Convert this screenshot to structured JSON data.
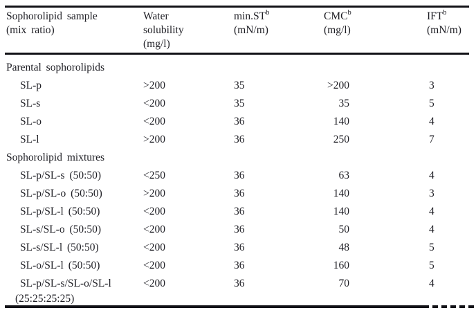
{
  "page": {
    "background": "#ffffff",
    "text_color": "#1e1e24",
    "rule_color": "#121217"
  },
  "table": {
    "header": {
      "sample": {
        "line1": "Sophorolipid sample",
        "line2": "(mix ratio)"
      },
      "water": {
        "line1": "Water",
        "line2": "solubility",
        "line3": "(mg/l)"
      },
      "min_st": {
        "name": "min.ST",
        "sup": "b",
        "unit": "(mN/m)"
      },
      "cmc": {
        "name": "CMC",
        "sup": "b",
        "unit": "(mg/l)"
      },
      "ift": {
        "name": "IFT",
        "sup": "b",
        "unit": "(mN/m)"
      }
    },
    "sections": [
      {
        "title": "Parental sophorolipids",
        "rows": [
          {
            "sample": "SL-p",
            "water_solubility": ">200",
            "min_st": "35",
            "cmc": ">200",
            "ift": "3"
          },
          {
            "sample": "SL-s",
            "water_solubility": "<200",
            "min_st": "35",
            "cmc": "35",
            "ift": "5"
          },
          {
            "sample": "SL-o",
            "water_solubility": "<200",
            "min_st": "36",
            "cmc": "140",
            "ift": "4"
          },
          {
            "sample": "SL-l",
            "water_solubility": ">200",
            "min_st": "36",
            "cmc": "250",
            "ift": "7"
          }
        ]
      },
      {
        "title": "Sophorolipid mixtures",
        "rows": [
          {
            "sample": "SL-p/SL-s (50:50)",
            "water_solubility": "<250",
            "min_st": "36",
            "cmc": "63",
            "ift": "4"
          },
          {
            "sample": "SL-p/SL-o (50:50)",
            "water_solubility": ">200",
            "min_st": "36",
            "cmc": "140",
            "ift": "3"
          },
          {
            "sample": "SL-p/SL-l (50:50)",
            "water_solubility": "<200",
            "min_st": "36",
            "cmc": "140",
            "ift": "4"
          },
          {
            "sample": "SL-s/SL-o (50:50)",
            "water_solubility": "<200",
            "min_st": "36",
            "cmc": "50",
            "ift": "4"
          },
          {
            "sample": "SL-s/SL-l (50:50)",
            "water_solubility": "<200",
            "min_st": "36",
            "cmc": "48",
            "ift": "5"
          },
          {
            "sample": "SL-o/SL-l (50:50)",
            "water_solubility": "<200",
            "min_st": "36",
            "cmc": "160",
            "ift": "5"
          },
          {
            "sample": "SL-p/SL-s/SL-o/SL-l",
            "sample_line2": "(25:25:25:25)",
            "water_solubility": "<200",
            "min_st": "36",
            "cmc": "70",
            "ift": "4"
          }
        ]
      }
    ]
  }
}
